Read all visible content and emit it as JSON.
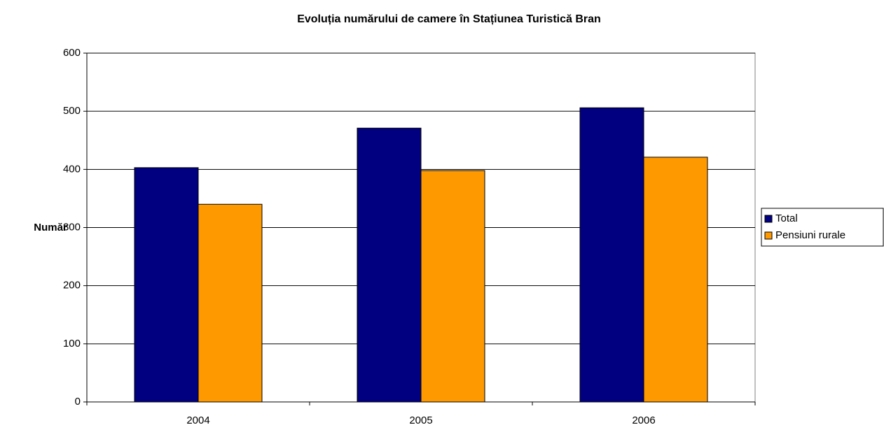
{
  "chart_data": {
    "type": "bar",
    "title": "Evoluția numărului de camere în Stațiunea Turistică Bran",
    "y_label": "Număr",
    "categories": [
      "2004",
      "2005",
      "2006"
    ],
    "series": [
      {
        "name": "Total",
        "color": "#000080",
        "values": [
          403,
          471,
          506
        ]
      },
      {
        "name": "Pensiuni rurale",
        "color": "#ff9900",
        "values": [
          340,
          398,
          421
        ]
      }
    ],
    "ylim": [
      0,
      600
    ],
    "yticks": [
      0,
      100,
      200,
      300,
      400,
      500,
      600
    ],
    "grid": true,
    "legend": "right"
  }
}
